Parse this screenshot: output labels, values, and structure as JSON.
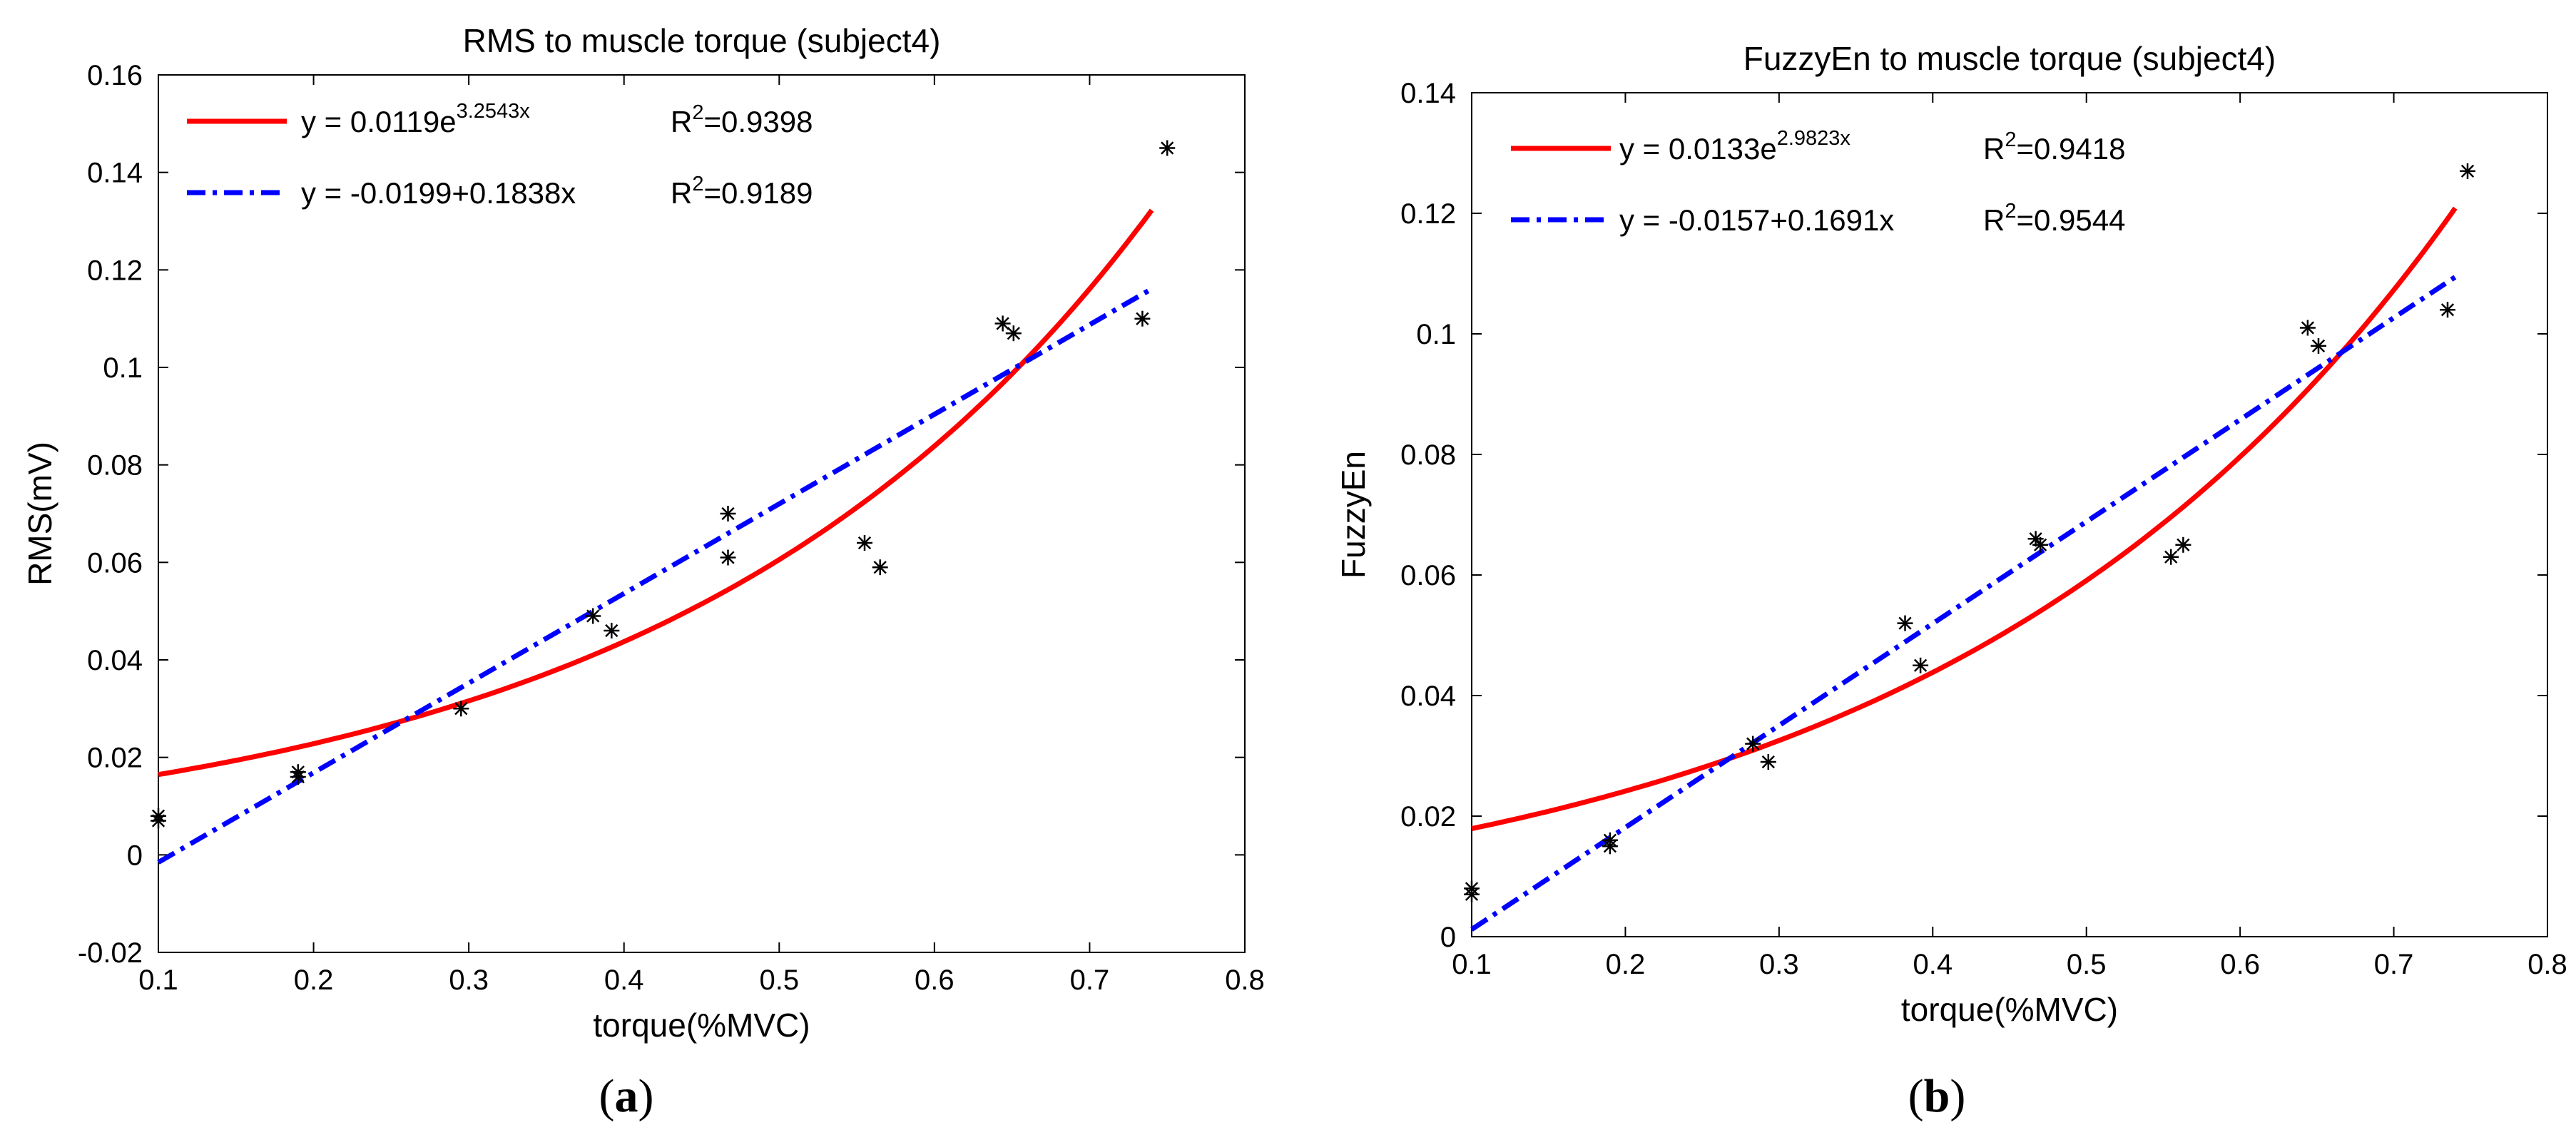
{
  "colors": {
    "exp": "#ff0000",
    "lin": "#0000ff",
    "marker": "#000000",
    "axis": "#000000"
  },
  "chart_data": [
    {
      "type": "scatter",
      "panel_label": "a",
      "title": "RMS to muscle torque (subject4)",
      "xlabel": "torque(%MVC)",
      "ylabel": "RMS(mV)",
      "xlim": [
        0.1,
        0.8
      ],
      "ylim": [
        -0.02,
        0.16
      ],
      "xticks": [
        0.1,
        0.2,
        0.3,
        0.4,
        0.5,
        0.6,
        0.7,
        0.8
      ],
      "xtick_labels": [
        "0.1",
        "0.2",
        "0.3",
        "0.4",
        "0.5",
        "0.6",
        "0.7",
        "0.8"
      ],
      "yticks": [
        -0.02,
        0,
        0.02,
        0.04,
        0.06,
        0.08,
        0.1,
        0.12,
        0.14,
        0.16
      ],
      "ytick_labels": [
        "-0.02",
        "0",
        "0.02",
        "0.04",
        "0.06",
        "0.08",
        "0.1",
        "0.12",
        "0.14",
        "0.16"
      ],
      "legend_position": "top-left",
      "legend": [
        {
          "kind": "exp",
          "eq_base": "y = 0.0119e",
          "eq_exponent": "3.2543x",
          "r2_prefix": "R",
          "r2_sup": "2",
          "r2_value": "=0.9398"
        },
        {
          "kind": "lin",
          "eq_base": "y = -0.0199+0.1838x",
          "eq_exponent": "",
          "r2_prefix": "R",
          "r2_sup": "2",
          "r2_value": "=0.9189"
        }
      ],
      "fits": {
        "exp": {
          "a": 0.0119,
          "b": 3.2543,
          "x_range": [
            0.1,
            0.74
          ]
        },
        "lin": {
          "intercept": -0.0199,
          "slope": 0.1838,
          "x_range": [
            0.1,
            0.74
          ]
        }
      },
      "points": [
        [
          0.1,
          0.008
        ],
        [
          0.1,
          0.007
        ],
        [
          0.19,
          0.017
        ],
        [
          0.19,
          0.016
        ],
        [
          0.295,
          0.03
        ],
        [
          0.38,
          0.049
        ],
        [
          0.392,
          0.046
        ],
        [
          0.467,
          0.07
        ],
        [
          0.467,
          0.061
        ],
        [
          0.555,
          0.064
        ],
        [
          0.565,
          0.059
        ],
        [
          0.644,
          0.109
        ],
        [
          0.651,
          0.107
        ],
        [
          0.734,
          0.11
        ],
        [
          0.75,
          0.145
        ]
      ]
    },
    {
      "type": "scatter",
      "panel_label": "b",
      "title": "FuzzyEn to muscle torque (subject4)",
      "xlabel": "torque(%MVC)",
      "ylabel": "FuzzyEn",
      "xlim": [
        0.1,
        0.8
      ],
      "ylim": [
        0,
        0.14
      ],
      "xticks": [
        0.1,
        0.2,
        0.3,
        0.4,
        0.5,
        0.6,
        0.7,
        0.8
      ],
      "xtick_labels": [
        "0.1",
        "0.2",
        "0.3",
        "0.4",
        "0.5",
        "0.6",
        "0.7",
        "0.8"
      ],
      "yticks": [
        0,
        0.02,
        0.04,
        0.06,
        0.08,
        0.1,
        0.12,
        0.14
      ],
      "ytick_labels": [
        "0",
        "0.02",
        "0.04",
        "0.06",
        "0.08",
        "0.1",
        "0.12",
        "0.14"
      ],
      "legend_position": "top-left",
      "legend": [
        {
          "kind": "exp",
          "eq_base": "y = 0.0133e",
          "eq_exponent": "2.9823x",
          "r2_prefix": "R",
          "r2_sup": "2",
          "r2_value": "=0.9418"
        },
        {
          "kind": "lin",
          "eq_base": "y = -0.0157+0.1691x",
          "eq_exponent": "",
          "r2_prefix": "R",
          "r2_sup": "2",
          "r2_value": "=0.9544"
        }
      ],
      "fits": {
        "exp": {
          "a": 0.0133,
          "b": 2.9823,
          "x_range": [
            0.1,
            0.74
          ]
        },
        "lin": {
          "intercept": -0.0157,
          "slope": 0.1691,
          "x_range": [
            0.1,
            0.74
          ]
        }
      },
      "points": [
        [
          0.1,
          0.008
        ],
        [
          0.1,
          0.007
        ],
        [
          0.19,
          0.016
        ],
        [
          0.19,
          0.015
        ],
        [
          0.283,
          0.032
        ],
        [
          0.293,
          0.029
        ],
        [
          0.382,
          0.052
        ],
        [
          0.392,
          0.045
        ],
        [
          0.467,
          0.066
        ],
        [
          0.47,
          0.065
        ],
        [
          0.555,
          0.063
        ],
        [
          0.563,
          0.065
        ],
        [
          0.644,
          0.101
        ],
        [
          0.651,
          0.098
        ],
        [
          0.735,
          0.104
        ],
        [
          0.748,
          0.127
        ]
      ]
    }
  ]
}
